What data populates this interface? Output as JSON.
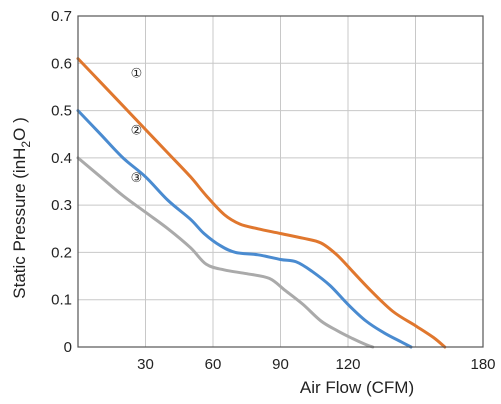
{
  "chart_data": {
    "type": "line",
    "xlabel": "Air Flow (CFM)",
    "ylabel": {
      "prefix": "Static Pressure (inH",
      "sub": "2",
      "suffix": "O )"
    },
    "xlim": [
      0,
      180
    ],
    "ylim": [
      0,
      0.7
    ],
    "xticks": [
      30,
      60,
      90,
      120,
      180
    ],
    "xtick_labels": [
      "30",
      "60",
      "90",
      "120",
      "180"
    ],
    "yticks": [
      0,
      0.1,
      0.2,
      0.3,
      0.4,
      0.5,
      0.6,
      0.7
    ],
    "ytick_labels": [
      "0",
      "0.1",
      "0.2",
      "0.3",
      "0.4",
      "0.5",
      "0.6",
      "0.7"
    ],
    "xgrid": [
      30,
      60,
      90,
      120,
      150
    ],
    "ygrid": [
      0.1,
      0.2,
      0.3,
      0.4,
      0.5,
      0.6
    ],
    "grid": true,
    "series": [
      {
        "label": "①",
        "color": "#e0772e",
        "label_at": [
          26,
          0.58
        ],
        "x": [
          0,
          10,
          20,
          30,
          40,
          50,
          57,
          65,
          72,
          80,
          90,
          100,
          108,
          115,
          122,
          130,
          140,
          150,
          158,
          163
        ],
        "y": [
          0.61,
          0.56,
          0.51,
          0.46,
          0.41,
          0.36,
          0.32,
          0.28,
          0.26,
          0.25,
          0.24,
          0.23,
          0.22,
          0.195,
          0.16,
          0.12,
          0.075,
          0.045,
          0.02,
          0.0
        ]
      },
      {
        "label": "②",
        "color": "#4a8bd0",
        "label_at": [
          26,
          0.46
        ],
        "x": [
          0,
          10,
          20,
          30,
          40,
          50,
          56,
          63,
          70,
          80,
          90,
          97,
          104,
          112,
          120,
          128,
          136,
          144,
          148
        ],
        "y": [
          0.5,
          0.45,
          0.4,
          0.36,
          0.31,
          0.27,
          0.24,
          0.215,
          0.2,
          0.195,
          0.185,
          0.18,
          0.16,
          0.13,
          0.09,
          0.055,
          0.03,
          0.01,
          0.0
        ]
      },
      {
        "label": "③",
        "color": "#aaaaaa",
        "label_at": [
          26,
          0.36
        ],
        "x": [
          0,
          10,
          20,
          30,
          40,
          50,
          57,
          65,
          75,
          85,
          92,
          100,
          108,
          115,
          122,
          128,
          131
        ],
        "y": [
          0.4,
          0.36,
          0.32,
          0.285,
          0.25,
          0.21,
          0.175,
          0.163,
          0.155,
          0.145,
          0.12,
          0.09,
          0.055,
          0.035,
          0.018,
          0.005,
          0.0
        ]
      }
    ]
  }
}
